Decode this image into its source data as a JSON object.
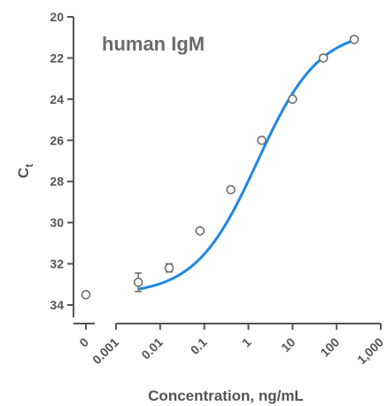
{
  "chart_data": {
    "type": "scatter",
    "title": "human IgM",
    "xlabel": "Concentration, ng/mL",
    "ylabel": "C",
    "ylabel_subscript": "t",
    "x_scale": "log",
    "xlim": [
      0.001,
      1000
    ],
    "ylim": [
      35,
      20
    ],
    "y_inverted": true,
    "y_ticks": [
      20,
      22,
      24,
      26,
      28,
      30,
      32,
      34
    ],
    "x_zero_tick_label": "0",
    "x_tick_labels": [
      "0.001",
      "0.01",
      "0.1",
      "1",
      "10",
      "100",
      "1,000"
    ],
    "x_ticks": [
      0.001,
      0.01,
      0.1,
      1,
      10,
      100,
      1000
    ],
    "zero_point": {
      "x": 0,
      "y": 33.5
    },
    "points": [
      {
        "x": 0.0032,
        "y": 32.9,
        "err": 0.45
      },
      {
        "x": 0.016,
        "y": 32.2,
        "err": 0.2
      },
      {
        "x": 0.08,
        "y": 30.4,
        "err": 0
      },
      {
        "x": 0.4,
        "y": 28.4,
        "err": 0
      },
      {
        "x": 2,
        "y": 26.0,
        "err": 0
      },
      {
        "x": 10,
        "y": 24.0,
        "err": 0
      },
      {
        "x": 50,
        "y": 22.0,
        "err": 0
      },
      {
        "x": 250,
        "y": 21.1,
        "err": 0
      }
    ],
    "fit_curve": {
      "bottom": 33.5,
      "top": 20.6,
      "log_ec50": 0.2,
      "hill": 0.62
    },
    "colors": {
      "curve": "#1e88e5",
      "marker": "#707070",
      "axis": "#555555"
    },
    "grid": false,
    "legend": "none"
  }
}
